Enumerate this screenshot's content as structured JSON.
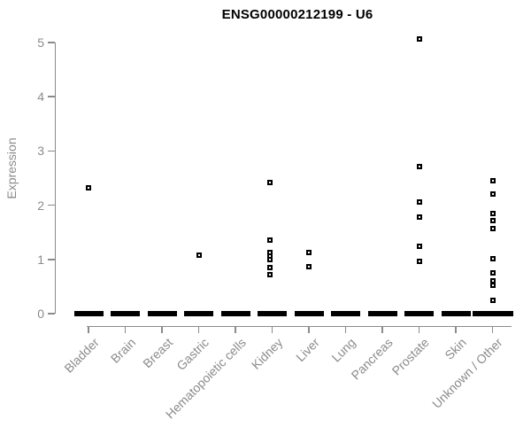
{
  "chart_data": {
    "type": "scatter",
    "title": "ENSG00000212199 - U6",
    "xlabel": "",
    "ylabel": "Expression",
    "ylim": [
      0,
      5
    ],
    "yticks": [
      0,
      1,
      2,
      3,
      4,
      5
    ],
    "grid": false,
    "legend": null,
    "marker": "open-square",
    "categories": [
      "Bladder",
      "Brain",
      "Breast",
      "Gastric",
      "Hematopoietic cells",
      "Kidney",
      "Liver",
      "Lung",
      "Pancreas",
      "Prostate",
      "Skin",
      "Unknown / Other"
    ],
    "series": [
      {
        "category": "Bladder",
        "values": [
          2.32
        ],
        "zero_bar": true
      },
      {
        "category": "Brain",
        "values": [],
        "zero_bar": true
      },
      {
        "category": "Breast",
        "values": [],
        "zero_bar": true
      },
      {
        "category": "Gastric",
        "values": [
          1.08
        ],
        "zero_bar": true
      },
      {
        "category": "Hematopoietic cells",
        "values": [],
        "zero_bar": true
      },
      {
        "category": "Kidney",
        "values": [
          2.42,
          1.36,
          1.13,
          1.06,
          1.0,
          0.85,
          0.72
        ],
        "zero_bar": true
      },
      {
        "category": "Liver",
        "values": [
          1.13,
          0.87
        ],
        "zero_bar": true
      },
      {
        "category": "Lung",
        "values": [],
        "zero_bar": true
      },
      {
        "category": "Pancreas",
        "values": [],
        "zero_bar": true
      },
      {
        "category": "Prostate",
        "values": [
          5.07,
          2.71,
          2.06,
          1.78,
          1.24,
          0.96
        ],
        "zero_bar": true
      },
      {
        "category": "Skin",
        "values": [],
        "zero_bar": true
      },
      {
        "category": "Unknown / Other",
        "values": [
          2.45,
          2.2,
          1.85,
          1.71,
          1.57,
          1.01,
          0.75,
          0.6,
          0.52,
          0.24
        ],
        "zero_bar": true
      }
    ],
    "colors": {
      "marker": "#000000",
      "axis": "#8b8b8b",
      "tick_text": "#8b8b8b",
      "title_text": "#000000",
      "background": "#ffffff"
    }
  }
}
